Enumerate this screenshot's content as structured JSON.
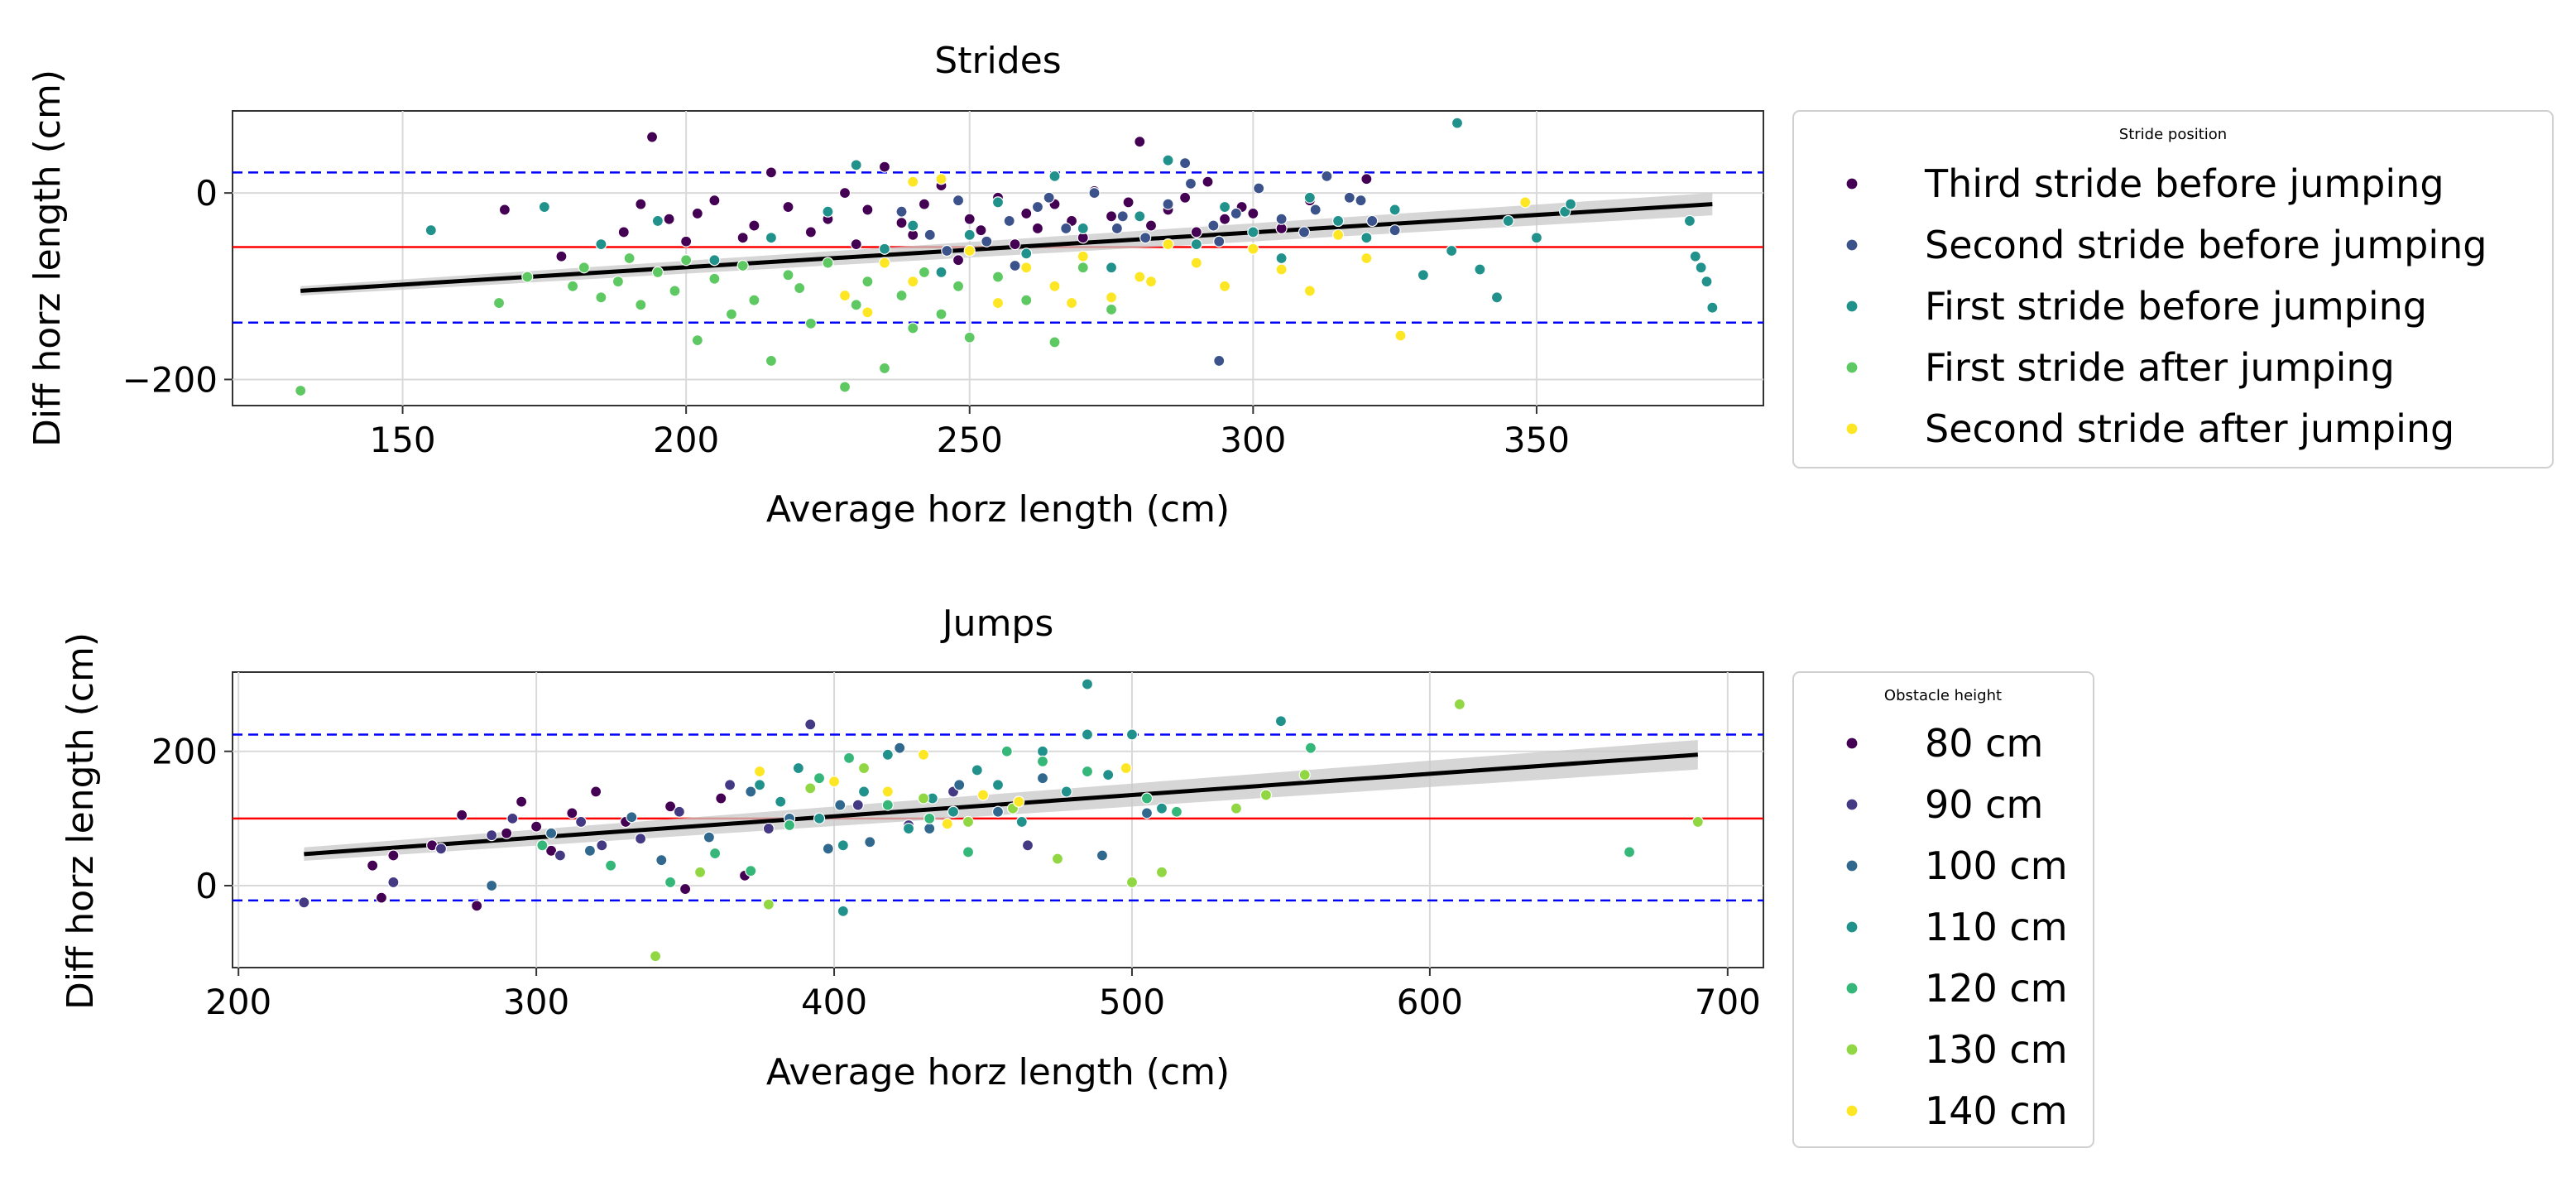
{
  "colors": {
    "mean_line": "#ff0000",
    "limit_line": "#0000ff",
    "regression_line": "#000000",
    "ci_band": "#c8c8c8",
    "stride_palette": [
      "#440154",
      "#3b528b",
      "#21918c",
      "#5ec962",
      "#fde725"
    ],
    "obstacle_palette": [
      "#440154",
      "#443983",
      "#31688e",
      "#21918c",
      "#35b779",
      "#90d743",
      "#fde725"
    ]
  },
  "chart_data": [
    {
      "type": "scatter",
      "title": "Strides",
      "xlabel": "Average horz length (cm)",
      "ylabel": "Diff horz length (cm)",
      "xlim": [
        120,
        390
      ],
      "ylim": [
        -228,
        88
      ],
      "xticks": [
        150,
        200,
        250,
        300,
        350
      ],
      "yticks": [
        0,
        -200
      ],
      "grid": true,
      "mean_line": -58,
      "limits_of_agreement": [
        -139,
        22
      ],
      "regression": {
        "x": [
          132,
          381
        ],
        "y": [
          -105,
          -12
        ],
        "ci_halfwidth": [
          5,
          12
        ]
      },
      "legend": {
        "title": "Stride position",
        "placement": "outside-right",
        "entries": [
          "Third stride before jumping",
          "Second stride before jumping",
          "First stride before jumping",
          "First stride after jumping",
          "Second stride after jumping"
        ]
      },
      "series": [
        {
          "name": "Third stride before jumping",
          "x": [
            194,
            168,
            178,
            189,
            192,
            197,
            200,
            202,
            205,
            210,
            212,
            215,
            218,
            222,
            225,
            228,
            230,
            232,
            235,
            238,
            240,
            242,
            245,
            248,
            250,
            252,
            255,
            258,
            260,
            262,
            265,
            268,
            270,
            272,
            275,
            278,
            280,
            282,
            285,
            288,
            290,
            292,
            295,
            298,
            300,
            305,
            310,
            315,
            320
          ],
          "y": [
            60,
            -18,
            -68,
            -42,
            -12,
            -28,
            -52,
            -22,
            -8,
            -48,
            -35,
            22,
            -15,
            -42,
            -28,
            0,
            -55,
            -18,
            28,
            -32,
            -45,
            -12,
            8,
            -72,
            -28,
            -40,
            -5,
            -55,
            -22,
            -38,
            -12,
            -30,
            -48,
            2,
            -25,
            -10,
            55,
            -35,
            -18,
            -5,
            -42,
            12,
            -28,
            -15,
            -22,
            -38,
            -8,
            -30,
            15
          ]
        },
        {
          "name": "Second stride before jumping",
          "x": [
            238,
            243,
            248,
            253,
            257,
            262,
            267,
            272,
            277,
            281,
            285,
            289,
            293,
            297,
            301,
            305,
            309,
            313,
            317,
            321,
            246,
            258,
            264,
            276,
            288,
            294,
            311,
            319,
            325,
            294
          ],
          "y": [
            -20,
            -45,
            -8,
            -52,
            -30,
            -15,
            -38,
            0,
            -25,
            -48,
            -12,
            10,
            -35,
            -22,
            5,
            -28,
            -42,
            18,
            -5,
            -30,
            -62,
            -78,
            -5,
            -38,
            32,
            -52,
            -18,
            -8,
            -40,
            -180
          ]
        },
        {
          "name": "First stride before jumping",
          "x": [
            155,
            175,
            185,
            195,
            205,
            215,
            225,
            230,
            235,
            240,
            245,
            250,
            255,
            260,
            265,
            270,
            275,
            280,
            285,
            290,
            295,
            300,
            305,
            310,
            315,
            320,
            325,
            330,
            335,
            336,
            340,
            343,
            345,
            350,
            355,
            356,
            377,
            378,
            379,
            380,
            381
          ],
          "y": [
            -40,
            -15,
            -55,
            -30,
            -72,
            -48,
            -20,
            30,
            -60,
            -35,
            -85,
            -45,
            -10,
            -65,
            18,
            -38,
            -80,
            -25,
            35,
            -55,
            -15,
            -42,
            -70,
            -5,
            -30,
            -48,
            -18,
            -88,
            -62,
            75,
            -82,
            -112,
            -30,
            -48,
            -20,
            -12,
            -30,
            -68,
            -80,
            -95,
            -123
          ]
        },
        {
          "name": "First stride after jumping",
          "x": [
            132,
            167,
            172,
            180,
            182,
            185,
            188,
            190,
            192,
            195,
            198,
            200,
            202,
            205,
            208,
            210,
            212,
            215,
            218,
            220,
            222,
            225,
            228,
            230,
            232,
            235,
            238,
            240,
            242,
            245,
            248,
            250,
            255,
            260,
            265,
            270,
            275
          ],
          "y": [
            -212,
            -118,
            -90,
            -100,
            -80,
            -112,
            -95,
            -70,
            -120,
            -85,
            -105,
            -72,
            -158,
            -92,
            -130,
            -78,
            -115,
            -180,
            -88,
            -102,
            -140,
            -75,
            -208,
            -120,
            -95,
            -188,
            -110,
            -145,
            -85,
            -130,
            -100,
            -155,
            -90,
            -115,
            -160,
            -80,
            -125
          ]
        },
        {
          "name": "Second stride after jumping",
          "x": [
            228,
            232,
            235,
            240,
            245,
            250,
            255,
            260,
            265,
            270,
            275,
            280,
            285,
            290,
            295,
            300,
            305,
            310,
            315,
            320,
            326,
            348,
            240,
            268,
            282
          ],
          "y": [
            -110,
            -128,
            -75,
            -95,
            15,
            -62,
            -118,
            -80,
            -100,
            -68,
            -112,
            -90,
            -55,
            -75,
            -100,
            -60,
            -82,
            -105,
            -45,
            -70,
            -153,
            -10,
            12,
            -118,
            -95
          ]
        }
      ]
    },
    {
      "type": "scatter",
      "title": "Jumps",
      "xlabel": "Average horz length (cm)",
      "ylabel": "Diff horz length (cm)",
      "xlim": [
        198,
        712
      ],
      "ylim": [
        -122,
        318
      ],
      "xticks": [
        200,
        300,
        400,
        500,
        600,
        700
      ],
      "yticks": [
        200,
        0
      ],
      "grid": true,
      "mean_line": 100,
      "limits_of_agreement": [
        -22,
        225
      ],
      "regression": {
        "x": [
          222,
          690
        ],
        "y": [
          47,
          195
        ],
        "ci_halfwidth": [
          10,
          22
        ]
      },
      "legend": {
        "title": "Obstacle height",
        "placement": "outside-right",
        "entries": [
          "80 cm",
          "90 cm",
          "100 cm",
          "110 cm",
          "120 cm",
          "130 cm",
          "140 cm"
        ]
      },
      "series": [
        {
          "name": "80 cm",
          "x": [
            245,
            248,
            252,
            265,
            275,
            280,
            290,
            295,
            300,
            305,
            312,
            320,
            330,
            345,
            350,
            362,
            370
          ],
          "y": [
            30,
            -18,
            45,
            60,
            105,
            -30,
            78,
            125,
            88,
            52,
            108,
            140,
            95,
            118,
            -5,
            130,
            15
          ]
        },
        {
          "name": "90 cm",
          "x": [
            222,
            252,
            268,
            285,
            292,
            308,
            315,
            322,
            335,
            348,
            365,
            378,
            392,
            408,
            425,
            440,
            465
          ],
          "y": [
            -25,
            5,
            55,
            75,
            100,
            45,
            95,
            60,
            70,
            110,
            150,
            85,
            240,
            120,
            90,
            140,
            60
          ]
        },
        {
          "name": "100 cm",
          "x": [
            285,
            305,
            318,
            332,
            342,
            358,
            372,
            385,
            398,
            402,
            412,
            422,
            432,
            442,
            455,
            470,
            490,
            505
          ],
          "y": [
            0,
            78,
            52,
            102,
            38,
            72,
            140,
            100,
            55,
            120,
            65,
            205,
            85,
            150,
            110,
            160,
            45,
            108
          ]
        },
        {
          "name": "110 cm",
          "x": [
            375,
            382,
            388,
            395,
            403,
            410,
            418,
            425,
            433,
            440,
            448,
            455,
            463,
            470,
            478,
            485,
            492,
            500,
            510,
            550,
            485,
            403
          ],
          "y": [
            150,
            125,
            175,
            100,
            60,
            140,
            195,
            85,
            130,
            110,
            172,
            150,
            95,
            200,
            140,
            300,
            165,
            225,
            115,
            245,
            225,
            -38
          ]
        },
        {
          "name": "120 cm",
          "x": [
            302,
            325,
            345,
            360,
            372,
            385,
            395,
            405,
            418,
            432,
            445,
            458,
            470,
            485,
            505,
            515,
            560,
            667
          ],
          "y": [
            60,
            30,
            5,
            48,
            22,
            90,
            160,
            190,
            120,
            100,
            50,
            200,
            185,
            170,
            130,
            110,
            205,
            50
          ]
        },
        {
          "name": "130 cm",
          "x": [
            340,
            355,
            378,
            392,
            410,
            430,
            445,
            460,
            475,
            500,
            510,
            535,
            545,
            558,
            610,
            690
          ],
          "y": [
            -105,
            20,
            -28,
            145,
            175,
            130,
            95,
            115,
            40,
            5,
            20,
            115,
            135,
            165,
            270,
            95
          ]
        },
        {
          "name": "140 cm",
          "x": [
            375,
            400,
            418,
            430,
            438,
            450,
            462,
            498
          ],
          "y": [
            170,
            155,
            140,
            195,
            92,
            135,
            125,
            175
          ]
        }
      ]
    }
  ]
}
